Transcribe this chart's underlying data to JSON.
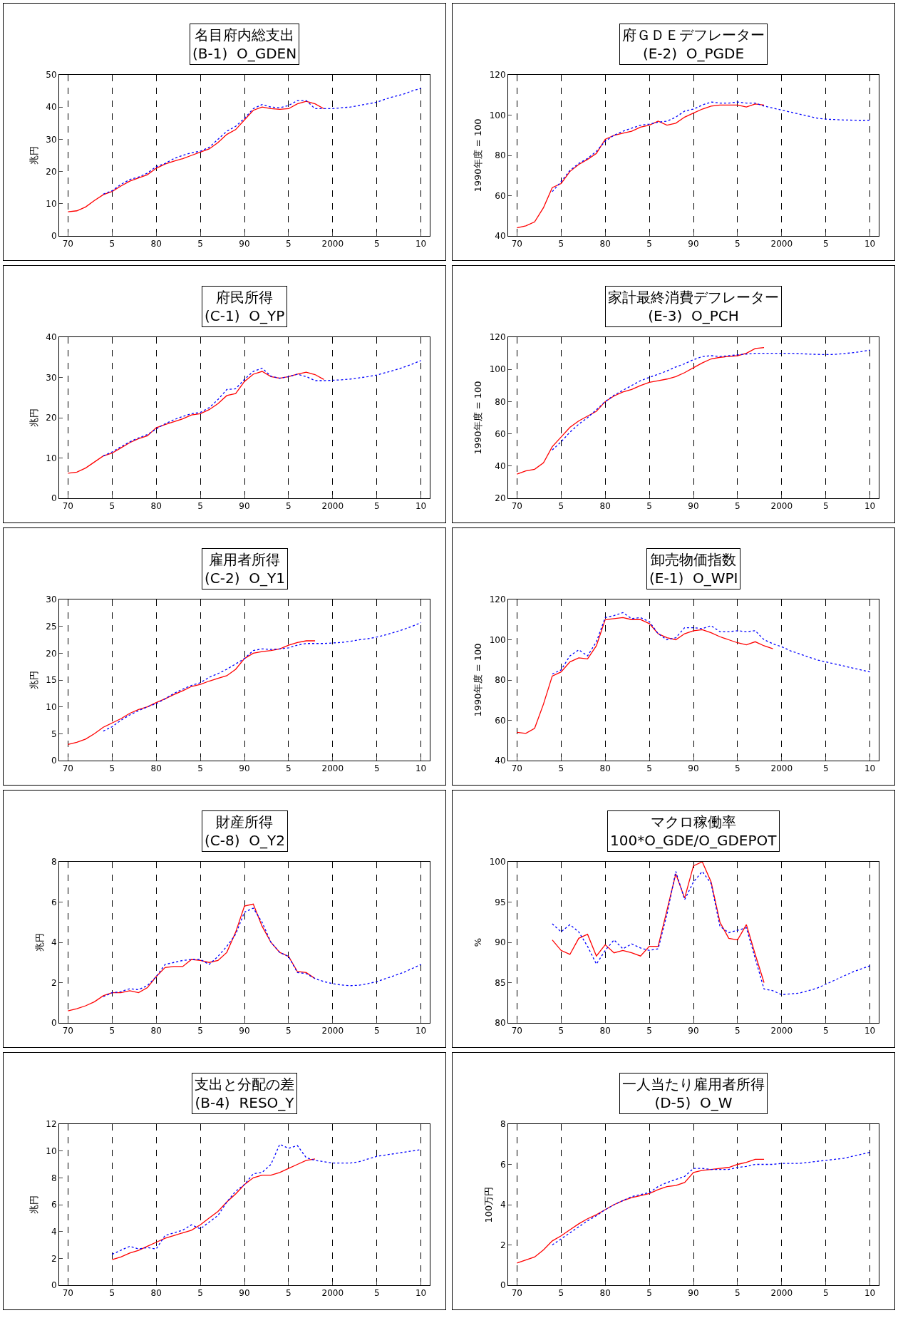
{
  "chart_data": [
    {
      "type": "line",
      "title": "名目府内総支出\n(B-1)  O_GDEN",
      "ylabel": "兆円",
      "xlim": [
        "1969",
        "2011"
      ],
      "xticks": [
        {
          "value": "1970",
          "label": "70"
        },
        {
          "value": "1975",
          "label": "5"
        },
        {
          "value": "1980",
          "label": "80"
        },
        {
          "value": "1985",
          "label": "5"
        },
        {
          "value": "1990",
          "label": "90"
        },
        {
          "value": "1995",
          "label": "5"
        },
        {
          "value": "2000",
          "label": "2000"
        },
        {
          "value": "2005",
          "label": "5"
        },
        {
          "value": "2010",
          "label": "10"
        }
      ],
      "ylim": [
        0,
        50
      ],
      "yticks": [
        0,
        10,
        20,
        30,
        40,
        50
      ],
      "grid": "x",
      "series": [
        {
          "color": "#ff0000",
          "line_style": "solid",
          "x": [
            "1970",
            "1971",
            "1972",
            "1973",
            "1974",
            "1975",
            "1976",
            "1977",
            "1978",
            "1979",
            "1980",
            "1981",
            "1982",
            "1983",
            "1984",
            "1985",
            "1986",
            "1987",
            "1988",
            "1989",
            "1990",
            "1991",
            "1992",
            "1993",
            "1994",
            "1995",
            "1996",
            "1997",
            "1998",
            "1999"
          ],
          "values": [
            7.5,
            7.8,
            9,
            11,
            12.8,
            13.8,
            15.5,
            17,
            18,
            19,
            21,
            22.3,
            23.2,
            24,
            25,
            26,
            27,
            29,
            31.5,
            33,
            36,
            39,
            40,
            39.5,
            39.3,
            39.5,
            41,
            41.8,
            41,
            39.5
          ]
        },
        {
          "color": "#0000ff",
          "line_style": "dotted",
          "x": [
            "1974",
            "1975",
            "1976",
            "1977",
            "1978",
            "1979",
            "1980",
            "1981",
            "1982",
            "1983",
            "1984",
            "1985",
            "1986",
            "1987",
            "1988",
            "1989",
            "1990",
            "1991",
            "1992",
            "1993",
            "1994",
            "1995",
            "1996",
            "1997",
            "1998",
            "1999",
            "2000",
            "2001",
            "2002",
            "2003",
            "2004",
            "2005",
            "2006",
            "2007",
            "2008",
            "2009",
            "2010"
          ],
          "values": [
            13,
            14,
            16,
            17.5,
            18.3,
            19.5,
            21.5,
            22.5,
            24,
            25,
            25.8,
            26.3,
            27.5,
            30,
            32.5,
            34,
            36.5,
            39.5,
            40.8,
            40,
            39.8,
            40.5,
            42,
            42,
            39.5,
            39.5,
            39.5,
            39.8,
            40,
            40.5,
            41,
            41.5,
            42.5,
            43.3,
            44,
            45,
            45.8
          ]
        }
      ]
    },
    {
      "type": "line",
      "title": "府ＧＤＥデフレーター\n(E-2)  O_PGDE",
      "ylabel": "1990年度 = 100",
      "xlim": [
        "1969",
        "2011"
      ],
      "xticks": [
        {
          "value": "1970",
          "label": "70"
        },
        {
          "value": "1975",
          "label": "5"
        },
        {
          "value": "1980",
          "label": "80"
        },
        {
          "value": "1985",
          "label": "5"
        },
        {
          "value": "1990",
          "label": "90"
        },
        {
          "value": "1995",
          "label": "5"
        },
        {
          "value": "2000",
          "label": "2000"
        },
        {
          "value": "2005",
          "label": "5"
        },
        {
          "value": "2010",
          "label": "10"
        }
      ],
      "ylim": [
        40,
        120
      ],
      "yticks": [
        40,
        60,
        80,
        100,
        120
      ],
      "grid": "x",
      "series": [
        {
          "color": "#ff0000",
          "line_style": "solid",
          "x": [
            "1970",
            "1971",
            "1972",
            "1973",
            "1974",
            "1975",
            "1976",
            "1977",
            "1978",
            "1979",
            "1980",
            "1981",
            "1982",
            "1983",
            "1984",
            "1985",
            "1986",
            "1987",
            "1988",
            "1989",
            "1990",
            "1991",
            "1992",
            "1993",
            "1994",
            "1995",
            "1996",
            "1997",
            "1998"
          ],
          "values": [
            44,
            45,
            47,
            54,
            64,
            66,
            72,
            75.5,
            78,
            81,
            88,
            90,
            91,
            92,
            94,
            95,
            97,
            95,
            96,
            99,
            101,
            103,
            104.5,
            105,
            105,
            105,
            104,
            105.5,
            105
          ]
        },
        {
          "color": "#0000ff",
          "line_style": "dotted",
          "x": [
            "1974",
            "1975",
            "1976",
            "1977",
            "1978",
            "1979",
            "1980",
            "1981",
            "1982",
            "1983",
            "1984",
            "1985",
            "1986",
            "1987",
            "1988",
            "1989",
            "1990",
            "1991",
            "1992",
            "1993",
            "1994",
            "1995",
            "1996",
            "1997",
            "1998",
            "1999",
            "2000",
            "2001",
            "2002",
            "2003",
            "2004",
            "2005",
            "2006",
            "2007",
            "2008",
            "2009",
            "2010"
          ],
          "values": [
            62,
            67,
            72.5,
            76,
            78.5,
            82,
            87,
            90,
            92,
            93.5,
            95,
            95.5,
            96.5,
            97,
            99,
            102,
            103,
            105,
            106.5,
            106,
            106,
            106.5,
            106,
            106,
            104.5,
            103.5,
            102.5,
            101.5,
            100.5,
            99.5,
            98.5,
            98,
            97.8,
            97.6,
            97.5,
            97.3,
            97.5
          ]
        }
      ]
    },
    {
      "type": "line",
      "title": "府民所得\n(C-1)  O_YP",
      "ylabel": "兆円",
      "xlim": [
        "1969",
        "2011"
      ],
      "xticks": [
        {
          "value": "1970",
          "label": "70"
        },
        {
          "value": "1975",
          "label": "5"
        },
        {
          "value": "1980",
          "label": "80"
        },
        {
          "value": "1985",
          "label": "5"
        },
        {
          "value": "1990",
          "label": "90"
        },
        {
          "value": "1995",
          "label": "5"
        },
        {
          "value": "2000",
          "label": "2000"
        },
        {
          "value": "2005",
          "label": "5"
        },
        {
          "value": "2010",
          "label": "10"
        }
      ],
      "ylim": [
        0,
        40
      ],
      "yticks": [
        0,
        10,
        20,
        30,
        40
      ],
      "grid": "x",
      "series": [
        {
          "color": "#ff0000",
          "line_style": "solid",
          "x": [
            "1970",
            "1971",
            "1972",
            "1973",
            "1974",
            "1975",
            "1976",
            "1977",
            "1978",
            "1979",
            "1980",
            "1981",
            "1982",
            "1983",
            "1984",
            "1985",
            "1986",
            "1987",
            "1988",
            "1989",
            "1990",
            "1991",
            "1992",
            "1993",
            "1994",
            "1995",
            "1996",
            "1997",
            "1998",
            "1999"
          ],
          "values": [
            6.2,
            6.5,
            7.5,
            9,
            10.5,
            11.2,
            12.5,
            13.8,
            14.8,
            15.5,
            17.5,
            18.3,
            19,
            19.7,
            20.7,
            21,
            22,
            23.5,
            25.5,
            26,
            29,
            30.8,
            31.5,
            30.2,
            29.8,
            30.2,
            30.8,
            31.3,
            30.7,
            29.5
          ]
        },
        {
          "color": "#0000ff",
          "line_style": "dotted",
          "x": [
            "1974",
            "1975",
            "1976",
            "1977",
            "1978",
            "1979",
            "1980",
            "1981",
            "1982",
            "1983",
            "1984",
            "1985",
            "1986",
            "1987",
            "1988",
            "1989",
            "1990",
            "1991",
            "1992",
            "1993",
            "1994",
            "1995",
            "1996",
            "1997",
            "1998",
            "1999",
            "2000",
            "2001",
            "2002",
            "2003",
            "2004",
            "2005",
            "2006",
            "2007",
            "2008",
            "2009",
            "2010"
          ],
          "values": [
            10.5,
            11.5,
            12.8,
            14,
            15,
            15.8,
            17.2,
            18.5,
            19.5,
            20.3,
            21,
            21.3,
            22.5,
            24.5,
            27,
            27.2,
            29.5,
            31.5,
            32.3,
            30.3,
            29.8,
            30.2,
            30.8,
            30.2,
            29.2,
            29.2,
            29.3,
            29.4,
            29.6,
            29.9,
            30.2,
            30.6,
            31.2,
            31.8,
            32.5,
            33.3,
            34.2
          ]
        }
      ]
    },
    {
      "type": "line",
      "title": "家計最終消費デフレーター\n(E-3)  O_PCH",
      "ylabel": "1990年度 = 100",
      "xlim": [
        "1969",
        "2011"
      ],
      "xticks": [
        {
          "value": "1970",
          "label": "70"
        },
        {
          "value": "1975",
          "label": "5"
        },
        {
          "value": "1980",
          "label": "80"
        },
        {
          "value": "1985",
          "label": "5"
        },
        {
          "value": "1990",
          "label": "90"
        },
        {
          "value": "1995",
          "label": "5"
        },
        {
          "value": "2000",
          "label": "2000"
        },
        {
          "value": "2005",
          "label": "5"
        },
        {
          "value": "2010",
          "label": "10"
        }
      ],
      "ylim": [
        20,
        120
      ],
      "yticks": [
        20,
        40,
        60,
        80,
        100,
        120
      ],
      "grid": "x",
      "series": [
        {
          "color": "#ff0000",
          "line_style": "solid",
          "x": [
            "1970",
            "1971",
            "1972",
            "1973",
            "1974",
            "1975",
            "1976",
            "1977",
            "1978",
            "1979",
            "1980",
            "1981",
            "1982",
            "1983",
            "1984",
            "1985",
            "1986",
            "1987",
            "1988",
            "1989",
            "1990",
            "1991",
            "1992",
            "1993",
            "1994",
            "1995",
            "1996",
            "1997",
            "1998"
          ],
          "values": [
            35,
            37,
            38,
            42,
            52,
            58,
            64,
            68,
            71,
            74,
            80,
            83.5,
            86,
            87.5,
            90,
            92,
            93,
            94,
            95.5,
            98,
            101,
            104,
            106.5,
            107.5,
            108,
            108.5,
            110,
            113,
            113.5
          ]
        },
        {
          "color": "#0000ff",
          "line_style": "dotted",
          "x": [
            "1974",
            "1975",
            "1976",
            "1977",
            "1978",
            "1979",
            "1980",
            "1981",
            "1982",
            "1983",
            "1984",
            "1985",
            "1986",
            "1987",
            "1988",
            "1989",
            "1990",
            "1991",
            "1992",
            "1993",
            "1994",
            "1995",
            "1996",
            "1997",
            "1998",
            "1999",
            "2000",
            "2001",
            "2002",
            "2003",
            "2004",
            "2005",
            "2006",
            "2007",
            "2008",
            "2009",
            "2010"
          ],
          "values": [
            50,
            55,
            61,
            66,
            70,
            75,
            80,
            84,
            87,
            90,
            93,
            95,
            97,
            99,
            101.5,
            103.5,
            106,
            108,
            108.5,
            108,
            108.5,
            109,
            109.5,
            110,
            110,
            110,
            110,
            110,
            109.8,
            109.5,
            109.3,
            109.2,
            109.3,
            109.8,
            110.3,
            111,
            112
          ]
        }
      ]
    },
    {
      "type": "line",
      "title": "雇用者所得\n(C-2)  O_Y1",
      "ylabel": "兆円",
      "xlim": [
        "1969",
        "2011"
      ],
      "xticks": [
        {
          "value": "1970",
          "label": "70"
        },
        {
          "value": "1975",
          "label": "5"
        },
        {
          "value": "1980",
          "label": "80"
        },
        {
          "value": "1985",
          "label": "5"
        },
        {
          "value": "1990",
          "label": "90"
        },
        {
          "value": "1995",
          "label": "5"
        },
        {
          "value": "2000",
          "label": "2000"
        },
        {
          "value": "2005",
          "label": "5"
        },
        {
          "value": "2010",
          "label": "10"
        }
      ],
      "ylim": [
        0,
        30
      ],
      "yticks": [
        0,
        5,
        10,
        15,
        20,
        25,
        30
      ],
      "grid": "x",
      "series": [
        {
          "color": "#ff0000",
          "line_style": "solid",
          "x": [
            "1970",
            "1971",
            "1972",
            "1973",
            "1974",
            "1975",
            "1976",
            "1977",
            "1978",
            "1979",
            "1980",
            "1981",
            "1982",
            "1983",
            "1984",
            "1985",
            "1986",
            "1987",
            "1988",
            "1989",
            "1990",
            "1991",
            "1992",
            "1993",
            "1994",
            "1995",
            "1996",
            "1997",
            "1998"
          ],
          "values": [
            3,
            3.4,
            4,
            5,
            6.2,
            7,
            7.8,
            8.8,
            9.5,
            10,
            10.8,
            11.5,
            12.3,
            13,
            13.8,
            14.2,
            14.8,
            15.3,
            15.8,
            17,
            19,
            20,
            20.3,
            20.5,
            20.8,
            21.5,
            22,
            22.3,
            22.3
          ]
        },
        {
          "color": "#0000ff",
          "line_style": "dotted",
          "x": [
            "1974",
            "1975",
            "1976",
            "1977",
            "1978",
            "1979",
            "1980",
            "1981",
            "1982",
            "1983",
            "1984",
            "1985",
            "1986",
            "1987",
            "1988",
            "1989",
            "1990",
            "1991",
            "1992",
            "1993",
            "1994",
            "1995",
            "1996",
            "1997",
            "1998",
            "1999",
            "2000",
            "2001",
            "2002",
            "2003",
            "2004",
            "2005",
            "2006",
            "2007",
            "2008",
            "2009",
            "2010"
          ],
          "values": [
            5.5,
            6.3,
            7.5,
            8.5,
            9.3,
            10,
            10.6,
            11.5,
            12.5,
            13.3,
            14,
            14.5,
            15.5,
            16.2,
            17,
            18,
            19,
            20.5,
            20.8,
            20.7,
            20.8,
            21,
            21.5,
            21.8,
            21.8,
            21.8,
            21.9,
            22,
            22.2,
            22.5,
            22.7,
            23,
            23.4,
            23.9,
            24.4,
            25,
            25.7
          ]
        }
      ]
    },
    {
      "type": "line",
      "title": "卸売物価指数\n(E-1)  O_WPI",
      "ylabel": "1990年度 = 100",
      "xlim": [
        "1969",
        "2011"
      ],
      "xticks": [
        {
          "value": "1970",
          "label": "70"
        },
        {
          "value": "1975",
          "label": "5"
        },
        {
          "value": "1980",
          "label": "80"
        },
        {
          "value": "1985",
          "label": "5"
        },
        {
          "value": "1990",
          "label": "90"
        },
        {
          "value": "1995",
          "label": "5"
        },
        {
          "value": "2000",
          "label": "2000"
        },
        {
          "value": "2005",
          "label": "5"
        },
        {
          "value": "2010",
          "label": "10"
        }
      ],
      "ylim": [
        40,
        120
      ],
      "yticks": [
        40,
        60,
        80,
        100,
        120
      ],
      "grid": "x",
      "series": [
        {
          "color": "#ff0000",
          "line_style": "solid",
          "x": [
            "1970",
            "1971",
            "1972",
            "1973",
            "1974",
            "1975",
            "1976",
            "1977",
            "1978",
            "1979",
            "1980",
            "1981",
            "1982",
            "1983",
            "1984",
            "1985",
            "1986",
            "1987",
            "1988",
            "1989",
            "1990",
            "1991",
            "1992",
            "1993",
            "1994",
            "1995",
            "1996",
            "1997",
            "1998",
            "1999"
          ],
          "values": [
            54,
            53.5,
            56,
            68,
            82,
            84,
            89,
            91,
            90.5,
            97,
            110,
            110.5,
            111,
            110,
            110,
            108,
            103,
            101,
            100,
            103,
            104.5,
            105,
            103.5,
            101.5,
            100,
            98.5,
            97.5,
            99,
            97,
            95.5
          ]
        },
        {
          "color": "#0000ff",
          "line_style": "dotted",
          "x": [
            "1974",
            "1975",
            "1976",
            "1977",
            "1978",
            "1979",
            "1980",
            "1981",
            "1982",
            "1983",
            "1984",
            "1985",
            "1986",
            "1987",
            "1988",
            "1989",
            "1990",
            "1991",
            "1992",
            "1993",
            "1994",
            "1995",
            "1996",
            "1997",
            "1998",
            "1999",
            "2000",
            "2001",
            "2002",
            "2003",
            "2004",
            "2005",
            "2006",
            "2007",
            "2008",
            "2009",
            "2010"
          ],
          "values": [
            83,
            85,
            92,
            95,
            92,
            99,
            111,
            112,
            113.5,
            110.5,
            111,
            109,
            103,
            100,
            101,
            106,
            106,
            105.5,
            107,
            104,
            104,
            104.5,
            104,
            104.5,
            100,
            98,
            96.5,
            94.5,
            93,
            91.5,
            90,
            89,
            88,
            87,
            86,
            85,
            84
          ]
        }
      ]
    },
    {
      "type": "line",
      "title": "財産所得\n(C-8)  O_Y2",
      "ylabel": "兆円",
      "xlim": [
        "1969",
        "2011"
      ],
      "xticks": [
        {
          "value": "1970",
          "label": "70"
        },
        {
          "value": "1975",
          "label": "5"
        },
        {
          "value": "1980",
          "label": "80"
        },
        {
          "value": "1985",
          "label": "5"
        },
        {
          "value": "1990",
          "label": "90"
        },
        {
          "value": "1995",
          "label": "5"
        },
        {
          "value": "2000",
          "label": "2000"
        },
        {
          "value": "2005",
          "label": "5"
        },
        {
          "value": "2010",
          "label": "10"
        }
      ],
      "ylim": [
        0,
        8
      ],
      "yticks": [
        0,
        2,
        4,
        6,
        8
      ],
      "grid": "x",
      "series": [
        {
          "color": "#ff0000",
          "line_style": "solid",
          "x": [
            "1970",
            "1971",
            "1972",
            "1973",
            "1974",
            "1975",
            "1976",
            "1977",
            "1978",
            "1979",
            "1980",
            "1981",
            "1982",
            "1983",
            "1984",
            "1985",
            "1986",
            "1987",
            "1988",
            "1989",
            "1990",
            "1991",
            "1992",
            "1993",
            "1994",
            "1995",
            "1996",
            "1997",
            "1998"
          ],
          "values": [
            0.6,
            0.7,
            0.85,
            1.05,
            1.35,
            1.5,
            1.5,
            1.6,
            1.5,
            1.75,
            2.3,
            2.75,
            2.8,
            2.8,
            3.15,
            3.1,
            3,
            3.1,
            3.5,
            4.5,
            5.8,
            5.9,
            4.8,
            4,
            3.5,
            3.3,
            2.55,
            2.5,
            2.2
          ]
        },
        {
          "color": "#0000ff",
          "line_style": "dotted",
          "x": [
            "1974",
            "1975",
            "1976",
            "1977",
            "1978",
            "1979",
            "1980",
            "1981",
            "1982",
            "1983",
            "1984",
            "1985",
            "1986",
            "1987",
            "1988",
            "1989",
            "1990",
            "1991",
            "1992",
            "1993",
            "1994",
            "1995",
            "1996",
            "1997",
            "1998",
            "1999",
            "2000",
            "2001",
            "2002",
            "2003",
            "2004",
            "2005",
            "2006",
            "2007",
            "2008",
            "2009",
            "2010"
          ],
          "values": [
            1.3,
            1.5,
            1.55,
            1.7,
            1.65,
            1.85,
            2.3,
            2.9,
            3,
            3.1,
            3.15,
            3.15,
            2.9,
            3.3,
            3.8,
            4.4,
            5.5,
            5.7,
            5,
            4,
            3.5,
            3.3,
            2.5,
            2.45,
            2.2,
            2.05,
            1.95,
            1.88,
            1.85,
            1.87,
            1.95,
            2.05,
            2.2,
            2.35,
            2.5,
            2.7,
            2.9
          ]
        }
      ]
    },
    {
      "type": "line",
      "title": "マクロ稼働率\n100*O_GDE/O_GDEPOT",
      "ylabel": "%",
      "xlim": [
        "1969",
        "2011"
      ],
      "xticks": [
        {
          "value": "1970",
          "label": "70"
        },
        {
          "value": "1975",
          "label": "5"
        },
        {
          "value": "1980",
          "label": "80"
        },
        {
          "value": "1985",
          "label": "5"
        },
        {
          "value": "1990",
          "label": "90"
        },
        {
          "value": "1995",
          "label": "5"
        },
        {
          "value": "2000",
          "label": "2000"
        },
        {
          "value": "2005",
          "label": "5"
        },
        {
          "value": "2010",
          "label": "10"
        }
      ],
      "ylim": [
        80,
        100
      ],
      "yticks": [
        80,
        85,
        90,
        95,
        100
      ],
      "grid": "x",
      "series": [
        {
          "color": "#ff0000",
          "line_style": "solid",
          "x": [
            "1974",
            "1975",
            "1976",
            "1977",
            "1978",
            "1979",
            "1980",
            "1981",
            "1982",
            "1983",
            "1984",
            "1985",
            "1986",
            "1987",
            "1988",
            "1989",
            "1990",
            "1991",
            "1992",
            "1993",
            "1994",
            "1995",
            "1996",
            "1997",
            "1998"
          ],
          "values": [
            90.3,
            89,
            88.5,
            90.5,
            91,
            88.3,
            89.7,
            88.7,
            89,
            88.7,
            88.3,
            89.5,
            89.5,
            94,
            98.5,
            95.5,
            99.5,
            100,
            97.5,
            92.5,
            90.5,
            90.3,
            92.2,
            88.5,
            85
          ]
        },
        {
          "color": "#0000ff",
          "line_style": "dotted",
          "x": [
            "1974",
            "1975",
            "1976",
            "1977",
            "1978",
            "1979",
            "1980",
            "1981",
            "1982",
            "1983",
            "1984",
            "1985",
            "1986",
            "1987",
            "1988",
            "1989",
            "1990",
            "1991",
            "1992",
            "1993",
            "1994",
            "1995",
            "1996",
            "1997",
            "1998",
            "1999",
            "2000",
            "2001",
            "2002",
            "2003",
            "2004",
            "2005",
            "2006",
            "2007",
            "2008",
            "2009",
            "2010"
          ],
          "values": [
            92.3,
            91.3,
            92.2,
            91.3,
            89.5,
            87.3,
            89,
            90.3,
            89.2,
            89.8,
            89.3,
            89,
            89.2,
            93.5,
            98.8,
            95.3,
            97.5,
            98.8,
            97.3,
            92,
            91.2,
            91.5,
            91.8,
            88,
            84.2,
            84,
            83.5,
            83.6,
            83.7,
            84,
            84.3,
            84.8,
            85.3,
            85.8,
            86.3,
            86.7,
            87.1
          ]
        }
      ]
    },
    {
      "type": "line",
      "title": "支出と分配の差\n(B-4)  RESO_Y",
      "ylabel": "兆円",
      "xlim": [
        "1969",
        "2011"
      ],
      "xticks": [
        {
          "value": "1970",
          "label": "70"
        },
        {
          "value": "1975",
          "label": "5"
        },
        {
          "value": "1980",
          "label": "80"
        },
        {
          "value": "1985",
          "label": "5"
        },
        {
          "value": "1990",
          "label": "90"
        },
        {
          "value": "1995",
          "label": "5"
        },
        {
          "value": "2000",
          "label": "2000"
        },
        {
          "value": "2005",
          "label": "5"
        },
        {
          "value": "2010",
          "label": "10"
        }
      ],
      "ylim": [
        0,
        12
      ],
      "yticks": [
        0,
        2,
        4,
        6,
        8,
        10,
        12
      ],
      "grid": "x",
      "series": [
        {
          "color": "#ff0000",
          "line_style": "solid",
          "x": [
            "1975",
            "1976",
            "1977",
            "1978",
            "1979",
            "1980",
            "1981",
            "1982",
            "1983",
            "1984",
            "1985",
            "1986",
            "1987",
            "1988",
            "1989",
            "1990",
            "1991",
            "1992",
            "1993",
            "1994",
            "1995",
            "1996",
            "1997",
            "1998"
          ],
          "values": [
            1.9,
            2.1,
            2.4,
            2.6,
            2.9,
            3.2,
            3.5,
            3.7,
            3.9,
            4.1,
            4.5,
            5,
            5.5,
            6.2,
            6.8,
            7.5,
            8,
            8.2,
            8.2,
            8.4,
            8.7,
            9,
            9.3,
            9.4
          ]
        },
        {
          "color": "#0000ff",
          "line_style": "dotted",
          "x": [
            "1975",
            "1976",
            "1977",
            "1978",
            "1979",
            "1980",
            "1981",
            "1982",
            "1983",
            "1984",
            "1985",
            "1986",
            "1987",
            "1988",
            "1989",
            "1990",
            "1991",
            "1992",
            "1993",
            "1994",
            "1995",
            "1996",
            "1997",
            "1998",
            "1999",
            "2000",
            "2001",
            "2002",
            "2003",
            "2004",
            "2005",
            "2006",
            "2007",
            "2008",
            "2009",
            "2010"
          ],
          "values": [
            2.3,
            2.6,
            2.9,
            2.7,
            2.8,
            2.7,
            3.7,
            3.9,
            4.1,
            4.5,
            4.2,
            4.7,
            5.2,
            6.2,
            7,
            7.5,
            8.3,
            8.4,
            9,
            10.5,
            10.2,
            10.4,
            9.5,
            9.3,
            9.2,
            9.1,
            9.1,
            9.1,
            9.2,
            9.4,
            9.6,
            9.7,
            9.8,
            9.9,
            10,
            10.1
          ]
        }
      ]
    },
    {
      "type": "line",
      "title": "一人当たり雇用者所得\n(D-5)  O_W",
      "ylabel": "100万円",
      "xlim": [
        "1969",
        "2011"
      ],
      "xticks": [
        {
          "value": "1970",
          "label": "70"
        },
        {
          "value": "1975",
          "label": "5"
        },
        {
          "value": "1980",
          "label": "80"
        },
        {
          "value": "1985",
          "label": "5"
        },
        {
          "value": "1990",
          "label": "90"
        },
        {
          "value": "1995",
          "label": "5"
        },
        {
          "value": "2000",
          "label": "2000"
        },
        {
          "value": "2005",
          "label": "5"
        },
        {
          "value": "2010",
          "label": "10"
        }
      ],
      "ylim": [
        0,
        8
      ],
      "yticks": [
        0,
        2,
        4,
        6,
        8
      ],
      "grid": "x",
      "series": [
        {
          "color": "#ff0000",
          "line_style": "solid",
          "x": [
            "1970",
            "1971",
            "1972",
            "1973",
            "1974",
            "1975",
            "1976",
            "1977",
            "1978",
            "1979",
            "1980",
            "1981",
            "1982",
            "1983",
            "1984",
            "1985",
            "1986",
            "1987",
            "1988",
            "1989",
            "1990",
            "1991",
            "1992",
            "1993",
            "1994",
            "1995",
            "1996",
            "1997",
            "1998"
          ],
          "values": [
            1.1,
            1.25,
            1.4,
            1.75,
            2.2,
            2.45,
            2.75,
            3.05,
            3.3,
            3.5,
            3.75,
            4,
            4.2,
            4.35,
            4.45,
            4.55,
            4.75,
            4.9,
            4.95,
            5.1,
            5.6,
            5.7,
            5.75,
            5.8,
            5.85,
            6,
            6.1,
            6.25,
            6.25
          ]
        },
        {
          "color": "#0000ff",
          "line_style": "dotted",
          "x": [
            "1974",
            "1975",
            "1976",
            "1977",
            "1978",
            "1979",
            "1980",
            "1981",
            "1982",
            "1983",
            "1984",
            "1985",
            "1986",
            "1987",
            "1988",
            "1989",
            "1990",
            "1991",
            "1992",
            "1993",
            "1994",
            "1995",
            "1996",
            "1997",
            "1998",
            "1999",
            "2000",
            "2001",
            "2002",
            "2003",
            "2004",
            "2005",
            "2006",
            "2007",
            "2008",
            "2009",
            "2010"
          ],
          "values": [
            2,
            2.3,
            2.6,
            2.9,
            3.2,
            3.45,
            3.75,
            4,
            4.2,
            4.4,
            4.5,
            4.6,
            4.9,
            5.1,
            5.25,
            5.4,
            5.8,
            5.8,
            5.75,
            5.75,
            5.75,
            5.85,
            5.9,
            6,
            6,
            6,
            6.05,
            6.05,
            6.05,
            6.1,
            6.15,
            6.2,
            6.25,
            6.3,
            6.4,
            6.5,
            6.6
          ]
        }
      ]
    }
  ]
}
